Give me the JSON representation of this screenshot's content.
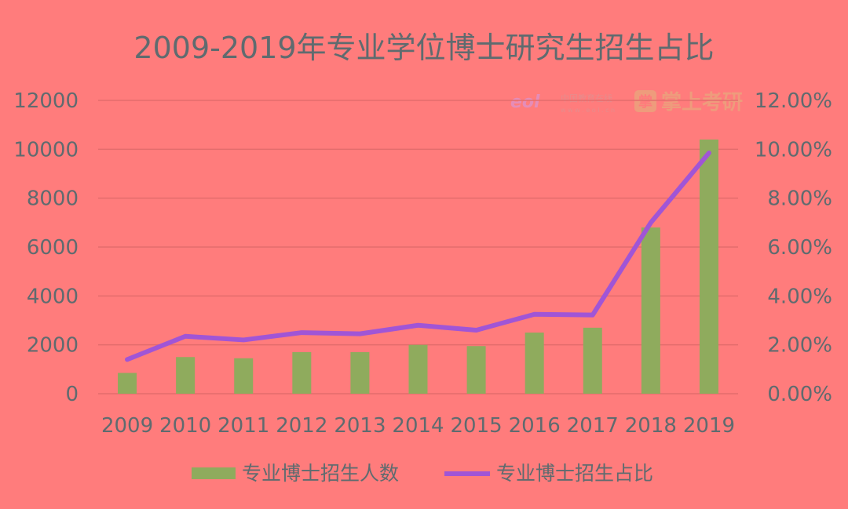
{
  "chart_data": {
    "type": "bar",
    "title": "2009-2019年专业学位博士研究生招生占比",
    "categories": [
      "2009",
      "2010",
      "2011",
      "2012",
      "2013",
      "2014",
      "2015",
      "2016",
      "2017",
      "2018",
      "2019"
    ],
    "series": [
      {
        "name": "专业博士招生人数",
        "type": "bar",
        "axis": "left",
        "color": "#8FAB5D",
        "values": [
          850,
          1500,
          1450,
          1700,
          1700,
          2000,
          1950,
          2500,
          2700,
          6800,
          10400
        ]
      },
      {
        "name": "专业博士招生占比",
        "type": "line",
        "axis": "right",
        "color": "#A055D6",
        "values": [
          1.4,
          2.35,
          2.2,
          2.5,
          2.45,
          2.8,
          2.6,
          3.25,
          3.22,
          7.0,
          9.85
        ]
      }
    ],
    "ylim_left": [
      0,
      12000
    ],
    "yticks_left": [
      "0",
      "2000",
      "4000",
      "6000",
      "8000",
      "10000",
      "12000"
    ],
    "ylim_right": [
      0,
      12
    ],
    "yticks_right": [
      "0.00%",
      "2.00%",
      "4.00%",
      "6.00%",
      "8.00%",
      "10.00%",
      "12.00%"
    ],
    "grid": true,
    "legend_position": "bottom"
  },
  "watermark": {
    "eol_logo": "eol",
    "eol_text": "中国教育在线",
    "eol_url": "w w w . e o l . c n",
    "brand_icon": "掌",
    "brand": "掌上考研"
  },
  "colors": {
    "background": "#FF7C7C",
    "grid": "#E36C6C",
    "text": "#5F6B6F"
  }
}
